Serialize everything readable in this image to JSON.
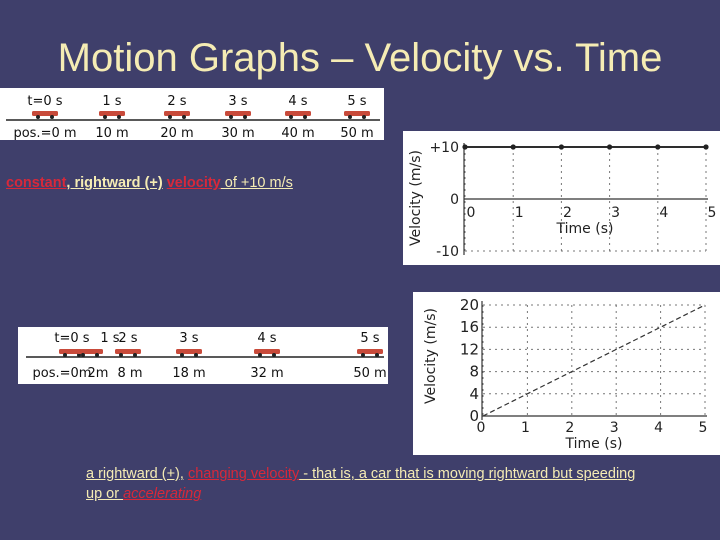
{
  "title": "Motion Graphs – Velocity vs. Time",
  "strip1": {
    "times": [
      "t=0 s",
      "1 s",
      "2 s",
      "3 s",
      "4 s",
      "5 s"
    ],
    "positions": [
      "pos.=0 m",
      "10 m",
      "20 m",
      "30 m",
      "40 m",
      "50 m"
    ]
  },
  "caption1": {
    "part1": "constant",
    "sep1": ", ",
    "part2": "rightward (+)",
    "sep2": " ",
    "part3": "velocity",
    "part4": " of +10 m/s"
  },
  "strip2": {
    "times": [
      "t=0 s",
      "1 s",
      "2 s",
      "3 s",
      "4 s",
      "5 s"
    ],
    "positions": [
      "pos.=0m",
      "2m",
      "8 m",
      "18 m",
      "32 m",
      "50 m"
    ]
  },
  "caption2": {
    "part1": "a rightward (+),",
    "sep1": " ",
    "part2": "changing velocity",
    "part3": " - that is, a car that is moving rightward but speeding up or ",
    "part4": "accelerating"
  },
  "chart_data": [
    {
      "type": "line",
      "title": "",
      "xlabel": "Time (s)",
      "ylabel": "Velocity (m/s)",
      "x": [
        0,
        1,
        2,
        3,
        4,
        5
      ],
      "y": [
        10,
        10,
        10,
        10,
        10,
        10
      ],
      "xticks": [
        "0",
        "1",
        "2",
        "3",
        "4",
        "5"
      ],
      "yticks": [
        "+10",
        "0",
        "-10"
      ],
      "ylim": [
        -10,
        10
      ],
      "xlim": [
        0,
        5
      ]
    },
    {
      "type": "line",
      "title": "",
      "xlabel": "Time (s)",
      "ylabel": "Velocity (m/s)",
      "x": [
        0,
        1,
        2,
        3,
        4,
        5
      ],
      "y": [
        0,
        4,
        8,
        12,
        16,
        20
      ],
      "xticks": [
        "0",
        "1",
        "2",
        "3",
        "4",
        "5"
      ],
      "yticks": [
        "20",
        "16",
        "12",
        "8",
        "4",
        "0"
      ],
      "ylim": [
        0,
        20
      ],
      "xlim": [
        0,
        5
      ]
    }
  ]
}
